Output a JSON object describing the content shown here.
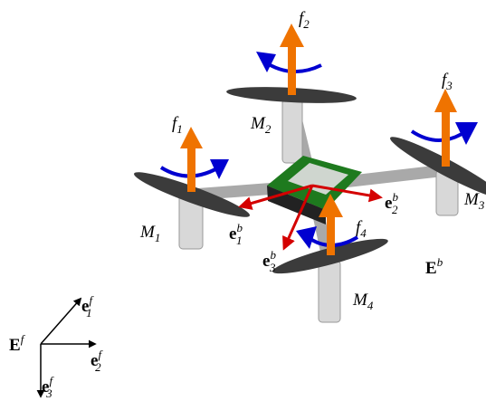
{
  "forces": [
    {
      "symbol": "f",
      "index": "1"
    },
    {
      "symbol": "f",
      "index": "2"
    },
    {
      "symbol": "f",
      "index": "3"
    },
    {
      "symbol": "f",
      "index": "4"
    }
  ],
  "motors": [
    {
      "symbol": "M",
      "index": "1"
    },
    {
      "symbol": "M",
      "index": "2"
    },
    {
      "symbol": "M",
      "index": "3"
    },
    {
      "symbol": "M",
      "index": "4"
    }
  ],
  "body_axes": [
    {
      "symbol": "e",
      "index": "1",
      "superscript": "b"
    },
    {
      "symbol": "e",
      "index": "2",
      "superscript": "b"
    },
    {
      "symbol": "e",
      "index": "3",
      "superscript": "b"
    }
  ],
  "body_frame": {
    "symbol": "E",
    "superscript": "b"
  },
  "inertial_frame": {
    "symbol": "E",
    "superscript": "f"
  },
  "inertial_axes": [
    {
      "symbol": "e",
      "index": "1",
      "superscript": "f"
    },
    {
      "symbol": "e",
      "index": "2",
      "superscript": "f"
    },
    {
      "symbol": "e",
      "index": "3",
      "superscript": "f"
    }
  ]
}
